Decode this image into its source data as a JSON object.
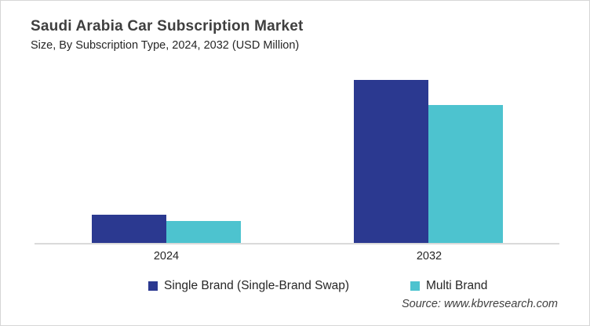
{
  "chart_data": {
    "type": "bar",
    "title": "Saudi Arabia Car Subscription Market",
    "subtitle": "Size, By Subscription Type, 2024, 2032 (USD Million)",
    "units": "USD Million",
    "categories": [
      "2024",
      "2032"
    ],
    "series": [
      {
        "name": "Single Brand (Single-Brand Swap)",
        "color": "#2B3990",
        "values": [
          17.3,
          100
        ]
      },
      {
        "name": "Multi Brand",
        "color": "#4DC3CF",
        "values": [
          13.5,
          84.6
        ]
      }
    ],
    "ylim": [
      0,
      107
    ],
    "value_axis_visible": false,
    "grid": false,
    "legend_position": "bottom",
    "axis_line_color": "#DADADA"
  },
  "source": "Source: www.kbvresearch.com",
  "colors": {
    "single_brand": "#2B3990",
    "multi_brand": "#4DC3CF",
    "title_text": "#3F3F3F",
    "body_text": "#262626",
    "border": "#D6D6D6"
  }
}
